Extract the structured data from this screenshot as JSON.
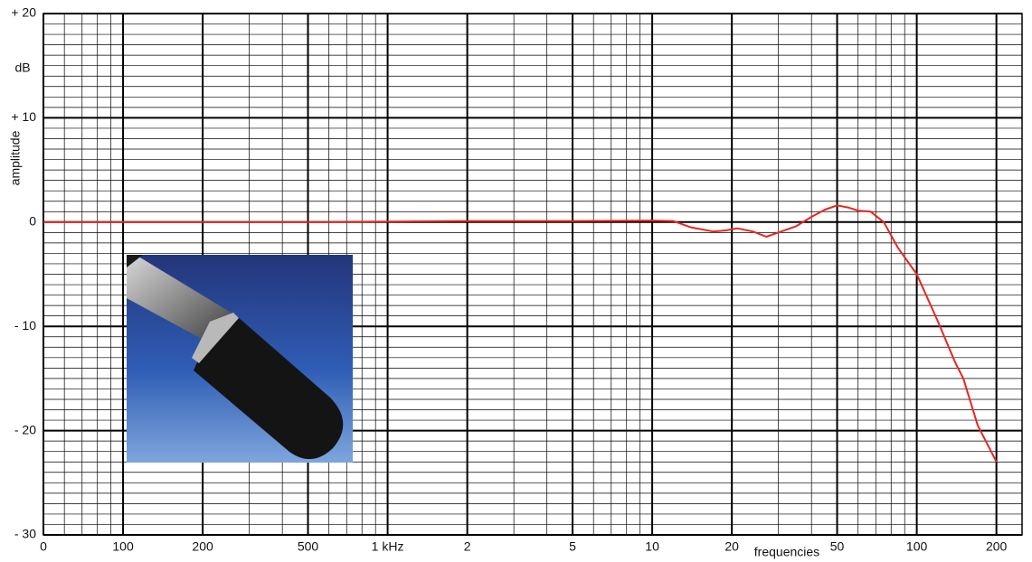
{
  "chart_data": {
    "type": "line",
    "x_label": "frequencies",
    "y_label": "amplitude",
    "y_unit": "dB",
    "log_x": true,
    "grid": true,
    "minor_grid": true,
    "color": "#e8261f",
    "xlim": [
      50,
      250000
    ],
    "xticks": [
      {
        "value": 50,
        "label": "0"
      },
      100,
      200,
      500,
      {
        "value": 1000,
        "label": "1 kHz"
      },
      {
        "value": 2000,
        "label": "2"
      },
      {
        "value": 5000,
        "label": "5"
      },
      {
        "value": 10000,
        "label": "10"
      },
      {
        "value": 20000,
        "label": "20"
      },
      {
        "value": 50000,
        "label": "50"
      },
      {
        "value": 100000,
        "label": "100"
      },
      {
        "value": 200000,
        "label": "200"
      }
    ],
    "ylim": [
      -30,
      20
    ],
    "yticks": [
      {
        "value": 20,
        "label": "+ 20"
      },
      {
        "value": 10,
        "label": "+ 10"
      },
      0,
      {
        "value": -10,
        "label": "- 10"
      },
      {
        "value": -20,
        "label": "- 20"
      },
      {
        "value": -30,
        "label": "- 30"
      }
    ],
    "x": [
      50,
      500,
      1000,
      2000,
      5000,
      10000,
      12000,
      14000,
      17000,
      19000,
      21000,
      24000,
      27000,
      30000,
      35000,
      40000,
      45000,
      50000,
      55000,
      60000,
      67000,
      75000,
      85000,
      100000,
      120000,
      140000,
      150000,
      170000,
      200000
    ],
    "values": [
      0,
      0,
      0.05,
      0.1,
      0.1,
      0.15,
      0.1,
      -0.5,
      -0.9,
      -0.8,
      -0.6,
      -0.9,
      -1.4,
      -1.0,
      -0.4,
      0.5,
      1.2,
      1.6,
      1.4,
      1.1,
      1.0,
      0,
      -2.5,
      -5,
      -9.5,
      -13.5,
      -15,
      -19.5,
      -23
    ]
  }
}
